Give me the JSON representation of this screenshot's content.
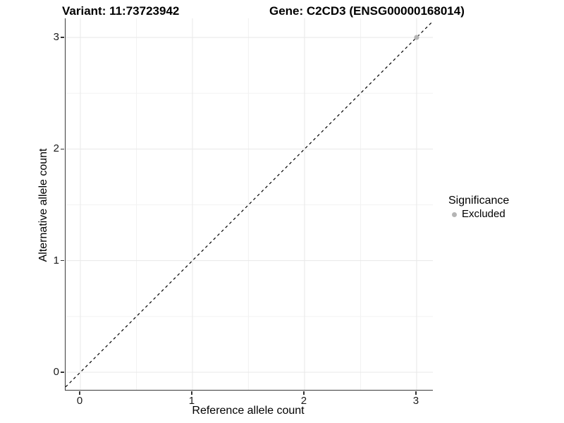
{
  "chart_data": {
    "type": "scatter",
    "title_left": "Variant: 11:73723942",
    "title_right": "Gene: C2CD3 (ENSG00000168014)",
    "xlabel": "Reference allele count",
    "ylabel": "Alternative allele count",
    "x_axis": {
      "min": -0.132,
      "max": 3.145,
      "major_ticks": [
        0,
        1,
        2,
        3
      ],
      "minor_ticks": [
        0.5,
        1.5,
        2.5
      ],
      "tick_labels": [
        "0",
        "1",
        "2",
        "3"
      ]
    },
    "y_axis": {
      "min": -0.158,
      "max": 3.171,
      "major_ticks": [
        0,
        1,
        2,
        3
      ],
      "minor_ticks": [
        0.5,
        1.5,
        2.5
      ],
      "tick_labels": [
        "0",
        "1",
        "2",
        "3"
      ]
    },
    "grid": {
      "major": true,
      "minor": true
    },
    "reference_line": {
      "equation": "y = x",
      "style": "dashed",
      "color": "#000000"
    },
    "points": [
      {
        "x": 3,
        "y": 3,
        "series": "Excluded"
      }
    ],
    "legend": {
      "title": "Significance",
      "position": "right",
      "items": [
        {
          "label": "Excluded",
          "color": "#b5b5b5"
        }
      ]
    },
    "colors": {
      "point": "#b5b5b5",
      "major_grid": "#e8e8e8",
      "minor_grid": "#f2f2f2",
      "axis_line": "#3a3a3a",
      "tick_mark": "#333333",
      "text": "#000000"
    }
  }
}
